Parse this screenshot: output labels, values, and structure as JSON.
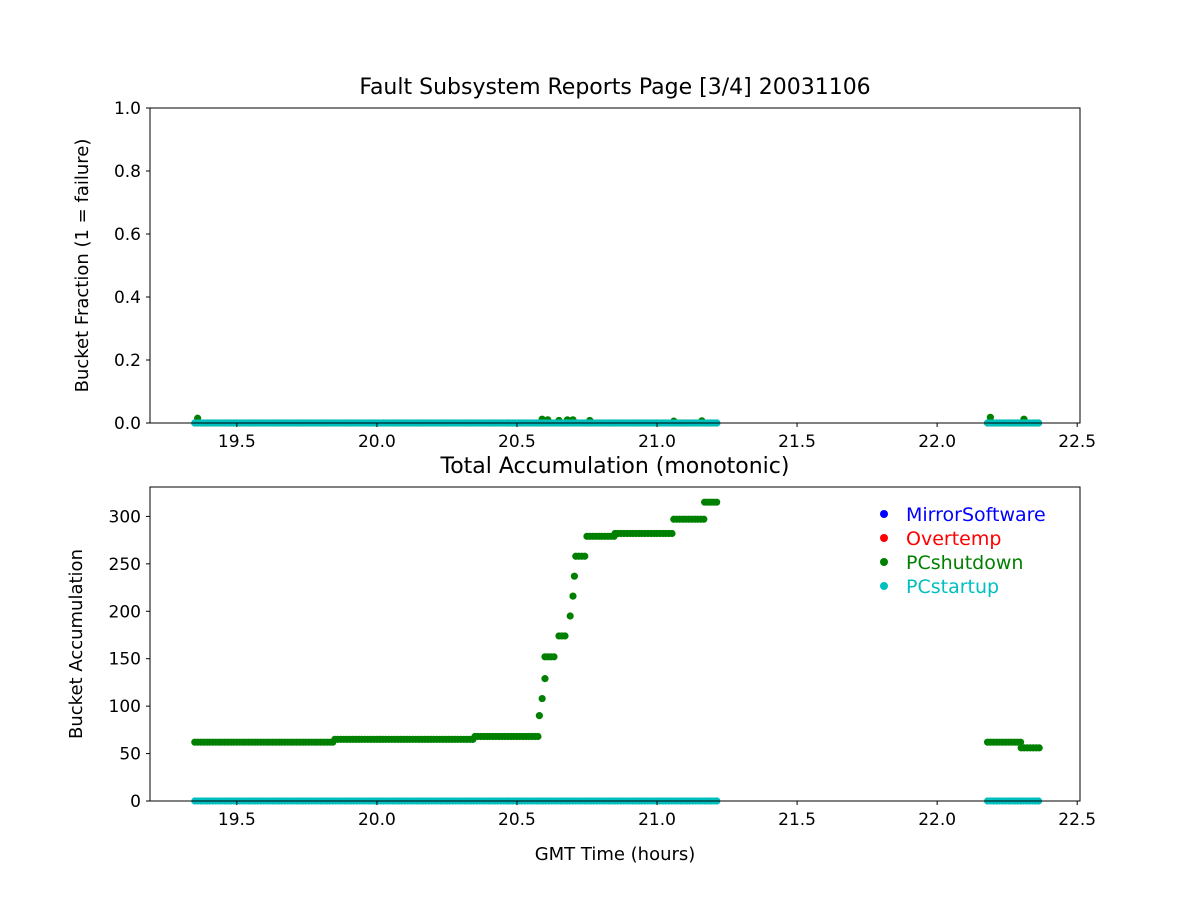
{
  "figure": {
    "background": "#ffffff",
    "series_colors": {
      "MirrorSoftware": "#0000ff",
      "Overtemp": "#ff0000",
      "PCshutdown": "#008000",
      "PCstartup": "#00bfbf"
    }
  },
  "chart_data": [
    {
      "type": "scatter",
      "title": "Fault Subsystem Reports Page [3/4] 20031106",
      "xlabel": "",
      "ylabel": "Bucket Fraction (1 = failure)",
      "xlim": [
        19.19,
        22.51
      ],
      "ylim": [
        0,
        1.0
      ],
      "x_ticks": [
        19.5,
        20.0,
        20.5,
        21.0,
        21.5,
        22.0,
        22.5
      ],
      "x_tick_labels": [
        "19.5",
        "20.0",
        "20.5",
        "21.0",
        "21.5",
        "22.0",
        "22.5"
      ],
      "y_ticks": [
        0,
        0.2,
        0.4,
        0.6,
        0.8,
        1.0
      ],
      "y_tick_labels": [
        "0.0",
        "0.2",
        "0.4",
        "0.6",
        "0.8",
        "1.0"
      ],
      "grid": false,
      "legend": null,
      "series": [
        {
          "name": "PCshutdown",
          "color": "#008000",
          "ranges": [
            {
              "x": [
                19.35,
                21.22
              ],
              "y": 0
            },
            {
              "x": [
                22.18,
                22.37
              ],
              "y": 0
            }
          ],
          "points": [
            {
              "x": 19.36,
              "y": 0.015
            },
            {
              "x": 20.59,
              "y": 0.012
            },
            {
              "x": 20.61,
              "y": 0.01
            },
            {
              "x": 20.65,
              "y": 0.008
            },
            {
              "x": 20.68,
              "y": 0.01
            },
            {
              "x": 20.7,
              "y": 0.01
            },
            {
              "x": 20.76,
              "y": 0.008
            },
            {
              "x": 21.06,
              "y": 0.006
            },
            {
              "x": 21.16,
              "y": 0.007
            },
            {
              "x": 22.19,
              "y": 0.018
            },
            {
              "x": 22.31,
              "y": 0.012
            }
          ]
        },
        {
          "name": "PCstartup",
          "color": "#00bfbf",
          "ranges": [
            {
              "x": [
                19.35,
                21.22
              ],
              "y": 0
            },
            {
              "x": [
                22.18,
                22.37
              ],
              "y": 0
            }
          ],
          "points": []
        }
      ]
    },
    {
      "type": "scatter",
      "title": "Total Accumulation (monotonic)",
      "xlabel": "GMT Time (hours)",
      "ylabel": "Bucket Accumulation",
      "xlim": [
        19.19,
        22.51
      ],
      "ylim": [
        0,
        331
      ],
      "x_ticks": [
        19.5,
        20.0,
        20.5,
        21.0,
        21.5,
        22.0,
        22.5
      ],
      "x_tick_labels": [
        "19.5",
        "20.0",
        "20.5",
        "21.0",
        "21.5",
        "22.0",
        "22.5"
      ],
      "y_ticks": [
        0,
        50,
        100,
        150,
        200,
        250,
        300
      ],
      "y_tick_labels": [
        "0",
        "50",
        "100",
        "150",
        "200",
        "250",
        "300"
      ],
      "grid": false,
      "legend": {
        "position": "top-right",
        "entries": [
          {
            "label": "MirrorSoftware",
            "color": "#0000ff"
          },
          {
            "label": "Overtemp",
            "color": "#ff0000"
          },
          {
            "label": "PCshutdown",
            "color": "#008000"
          },
          {
            "label": "PCstartup",
            "color": "#00bfbf"
          }
        ]
      },
      "series": [
        {
          "name": "PCshutdown",
          "color": "#008000",
          "ranges": [
            {
              "x": [
                19.35,
                19.85
              ],
              "y": 62
            },
            {
              "x": [
                19.85,
                20.35
              ],
              "y": 65
            },
            {
              "x": [
                20.35,
                20.58
              ],
              "y": 68
            },
            {
              "x": [
                20.6,
                20.64
              ],
              "y": 152
            },
            {
              "x": [
                20.65,
                20.68
              ],
              "y": 174
            },
            {
              "x": [
                20.71,
                20.75
              ],
              "y": 258
            },
            {
              "x": [
                20.75,
                20.85
              ],
              "y": 279
            },
            {
              "x": [
                20.85,
                21.06
              ],
              "y": 282
            },
            {
              "x": [
                21.06,
                21.17
              ],
              "y": 297
            },
            {
              "x": [
                21.17,
                21.22
              ],
              "y": 315
            },
            {
              "x": [
                22.18,
                22.3
              ],
              "y": 62
            },
            {
              "x": [
                22.3,
                22.37
              ],
              "y": 56
            }
          ],
          "points": [
            {
              "x": 20.58,
              "y": 90
            },
            {
              "x": 20.59,
              "y": 108
            },
            {
              "x": 20.6,
              "y": 129
            },
            {
              "x": 20.69,
              "y": 195
            },
            {
              "x": 20.7,
              "y": 216
            },
            {
              "x": 20.705,
              "y": 237
            }
          ]
        },
        {
          "name": "PCstartup",
          "color": "#00bfbf",
          "ranges": [
            {
              "x": [
                19.35,
                21.22
              ],
              "y": 0
            },
            {
              "x": [
                22.18,
                22.37
              ],
              "y": 0
            }
          ],
          "points": []
        }
      ]
    }
  ]
}
